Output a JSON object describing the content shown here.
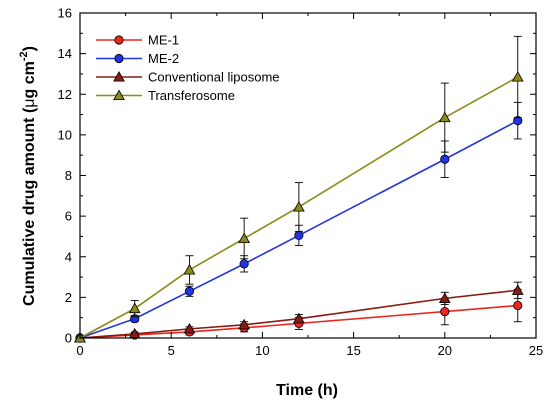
{
  "chart_data": {
    "type": "line",
    "xlabel": "Time (h)",
    "ylabel": {
      "prefix": "Cumulative drug amount (",
      "mu": "μ",
      "unit": "g cm",
      "sup": "-2",
      "suffix": ")"
    },
    "xlim": [
      0,
      25
    ],
    "ylim": [
      0,
      16
    ],
    "x_ticks": [
      "0",
      "5",
      "10",
      "15",
      "20",
      "25"
    ],
    "y_ticks": [
      "0",
      "2",
      "4",
      "6",
      "8",
      "10",
      "12",
      "14",
      "16"
    ],
    "legend_position": "top-left",
    "grid": false,
    "x": [
      0,
      3,
      6,
      9,
      12,
      20,
      24
    ],
    "series": [
      {
        "name": "ME-1",
        "marker": "circle",
        "color": "#e8281e",
        "values": [
          0,
          0.15,
          0.3,
          0.5,
          0.72,
          1.3,
          1.6
        ],
        "errors": [
          0,
          0.08,
          0.15,
          0.2,
          0.3,
          0.65,
          0.8
        ]
      },
      {
        "name": "ME-2",
        "marker": "circle",
        "color": "#2233e0",
        "values": [
          0,
          0.95,
          2.3,
          3.65,
          5.05,
          8.8,
          10.7
        ],
        "errors": [
          0,
          0.15,
          0.25,
          0.4,
          0.5,
          0.9,
          0.9
        ]
      },
      {
        "name": "Conventional liposome",
        "marker": "triangle",
        "color": "#8b1a12",
        "values": [
          0,
          0.2,
          0.45,
          0.65,
          0.95,
          1.95,
          2.35
        ],
        "errors": [
          0,
          0.05,
          0.1,
          0.15,
          0.2,
          0.3,
          0.4
        ]
      },
      {
        "name": "Transferosome",
        "marker": "triangle",
        "color": "#8a8a18",
        "values": [
          0,
          1.45,
          3.35,
          4.9,
          6.45,
          10.85,
          12.85
        ],
        "errors": [
          0,
          0.4,
          0.7,
          1.0,
          1.2,
          1.7,
          2.0
        ]
      }
    ]
  }
}
